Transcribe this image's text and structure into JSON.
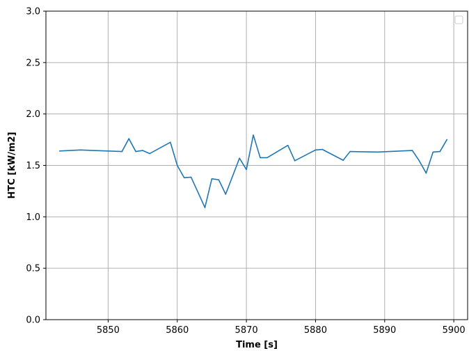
{
  "chart_data": {
    "type": "line",
    "title": "",
    "xlabel": "Time [s]",
    "ylabel": "HTC [kW/m2]",
    "xlim": [
      5841,
      5902
    ],
    "ylim": [
      0.0,
      3.0
    ],
    "xticks": [
      5850,
      5860,
      5870,
      5880,
      5890,
      5900
    ],
    "yticks": [
      0.0,
      0.5,
      1.0,
      1.5,
      2.0,
      2.5,
      3.0
    ],
    "xtick_labels": [
      "5850",
      "5860",
      "5870",
      "5880",
      "5890",
      "5900"
    ],
    "ytick_labels": [
      "0.0",
      "0.5",
      "1.0",
      "1.5",
      "2.0",
      "2.5",
      "3.0"
    ],
    "grid": true,
    "legend": {
      "placement": "top-right",
      "entries": []
    },
    "series": [
      {
        "color": "#1f77b4",
        "x": [
          5843,
          5846,
          5852,
          5853,
          5854,
          5855,
          5856,
          5859,
          5860,
          5861,
          5862,
          5864,
          5865,
          5866,
          5867,
          5869,
          5870,
          5871,
          5872,
          5873,
          5876,
          5877,
          5880,
          5881,
          5884,
          5885,
          5889,
          5894,
          5895,
          5896,
          5897,
          5898,
          5899
        ],
        "y": [
          1.64,
          1.65,
          1.635,
          1.76,
          1.635,
          1.645,
          1.615,
          1.725,
          1.5,
          1.38,
          1.385,
          1.09,
          1.37,
          1.36,
          1.22,
          1.57,
          1.46,
          1.795,
          1.575,
          1.575,
          1.695,
          1.545,
          1.65,
          1.655,
          1.55,
          1.635,
          1.63,
          1.645,
          1.545,
          1.425,
          1.63,
          1.635,
          1.75
        ]
      }
    ]
  }
}
